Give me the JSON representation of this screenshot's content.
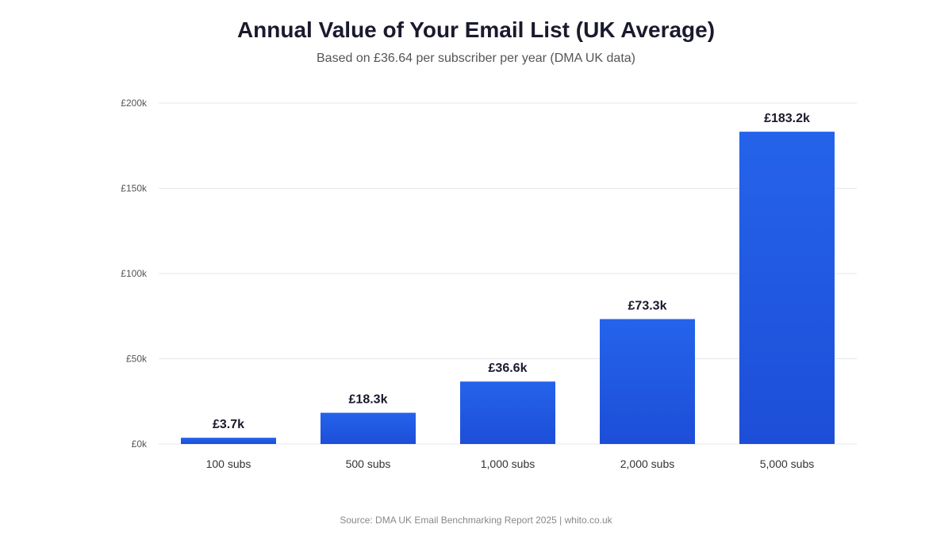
{
  "header": {
    "title": "Annual Value of Your Email List (UK Average)",
    "subtitle": "Based on £36.64 per subscriber per year (DMA UK data)"
  },
  "footer": {
    "source": "Source: DMA UK Email Benchmarking Report 2025 | whito.co.uk"
  },
  "colors": {
    "bar_top": "#2563eb",
    "bar_bottom": "#1d4ed8",
    "grid": "#e5e7eb",
    "tick_text": "#555555",
    "label_text": "#1a1a2e"
  },
  "chart_data": {
    "type": "bar",
    "categories": [
      "100 subs",
      "500 subs",
      "1,000 subs",
      "2,000 subs",
      "5,000 subs"
    ],
    "values": [
      3664,
      18320,
      36640,
      73280,
      183200
    ],
    "value_labels": [
      "£3.7k",
      "£18.3k",
      "£36.6k",
      "£73.3k",
      "£183.2k"
    ],
    "ylim": [
      0,
      200000
    ],
    "yticks": [
      0,
      50000,
      100000,
      150000,
      200000
    ],
    "ytick_labels": [
      "£0k",
      "£50k",
      "£100k",
      "£150k",
      "£200k"
    ],
    "grid": true,
    "legend": "none"
  }
}
